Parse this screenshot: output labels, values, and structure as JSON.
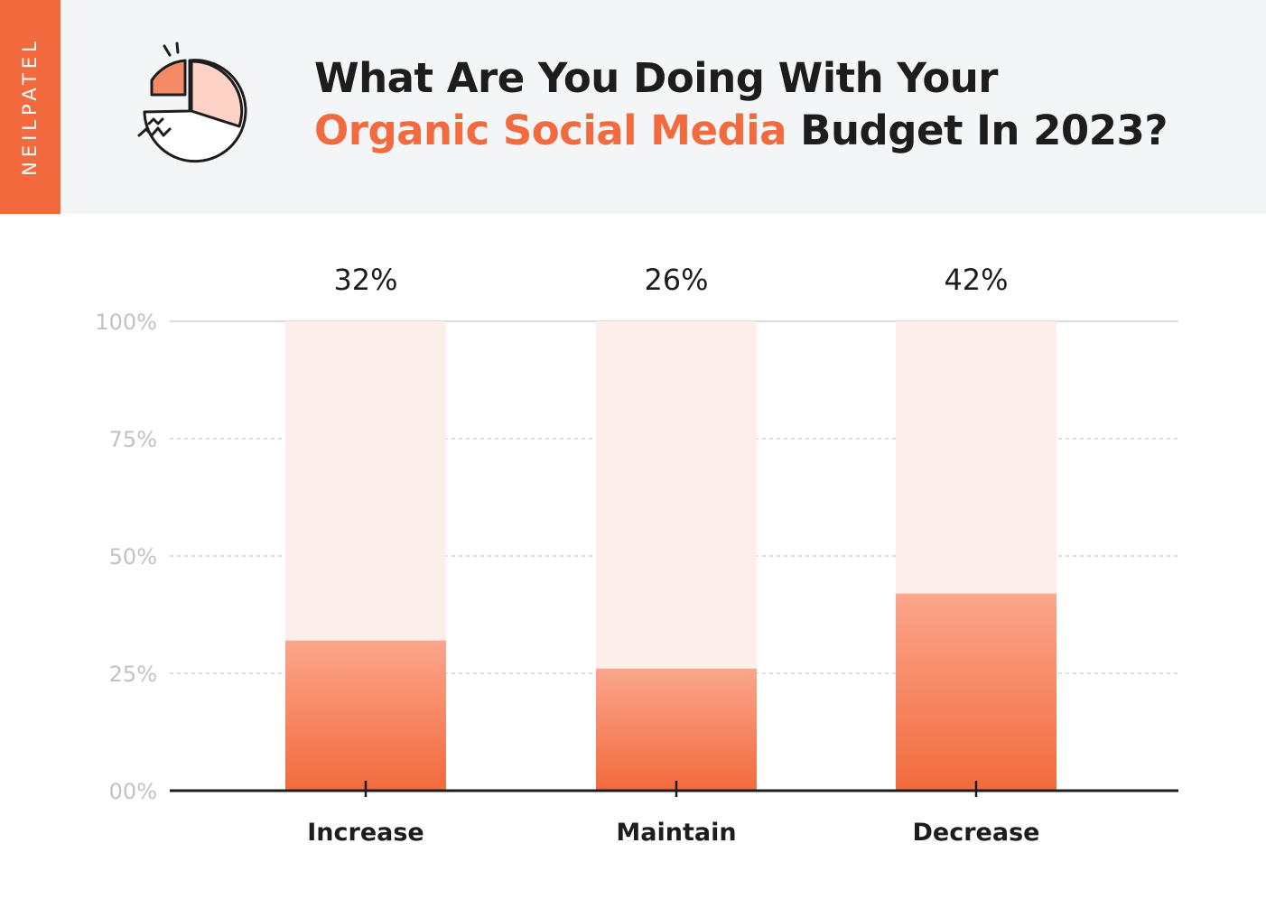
{
  "brand": {
    "name": "NEILPATEL"
  },
  "header": {
    "title_line1": "What Are You Doing With Your",
    "title_accent": "Organic Social Media",
    "title_rest": " Budget In 2023?",
    "icon": "pie-chart-icon"
  },
  "colors": {
    "accent": "#f26a3d",
    "bar_top": "#fba68b",
    "bar_bottom": "#f26a3d",
    "bar_track": "#fdeeea",
    "header_bg": "#f4f5f7"
  },
  "chart_data": {
    "type": "bar",
    "categories": [
      "Increase",
      "Maintain",
      "Decrease"
    ],
    "values": [
      32,
      26,
      42
    ],
    "value_labels": [
      "32%",
      "26%",
      "42%"
    ],
    "y_ticks": [
      {
        "value": 0,
        "label": "00%"
      },
      {
        "value": 25,
        "label": "25%"
      },
      {
        "value": 50,
        "label": "50%"
      },
      {
        "value": 75,
        "label": "75%"
      },
      {
        "value": 100,
        "label": "100%"
      }
    ],
    "ylim": [
      0,
      100
    ],
    "grid": true,
    "title": "What Are You Doing With Your Organic Social Media Budget In 2023?",
    "xlabel": "",
    "ylabel": ""
  }
}
